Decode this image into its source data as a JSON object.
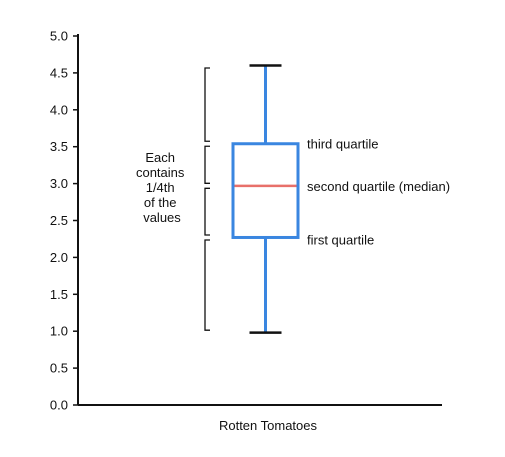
{
  "chart_data": {
    "type": "box",
    "title": "",
    "xlabel": "Rotten Tomatoes",
    "ylabel": "",
    "ylim": [
      0,
      5
    ],
    "yticks": [
      "0.0",
      "0.5",
      "1.0",
      "1.5",
      "2.0",
      "2.5",
      "3.0",
      "3.5",
      "4.0",
      "4.5",
      "5.0"
    ],
    "grid": false,
    "box": {
      "min": 0.98,
      "q1": 2.27,
      "median": 2.97,
      "q3": 3.54,
      "max": 4.6
    },
    "annotations": {
      "q3": "third quartile",
      "median": "second quartile (median)",
      "q1": "first quartile",
      "brackets_note": [
        "Each",
        "contains",
        "1/4th",
        "of the",
        "values"
      ]
    },
    "brackets": [
      [
        0.98,
        2.27
      ],
      [
        2.27,
        2.97
      ],
      [
        2.97,
        3.54
      ],
      [
        3.54,
        4.6
      ]
    ],
    "colors": {
      "box": "#3a86e0",
      "median": "#e8706a",
      "whisker_cap": "#111111",
      "axis": "#111111"
    }
  }
}
